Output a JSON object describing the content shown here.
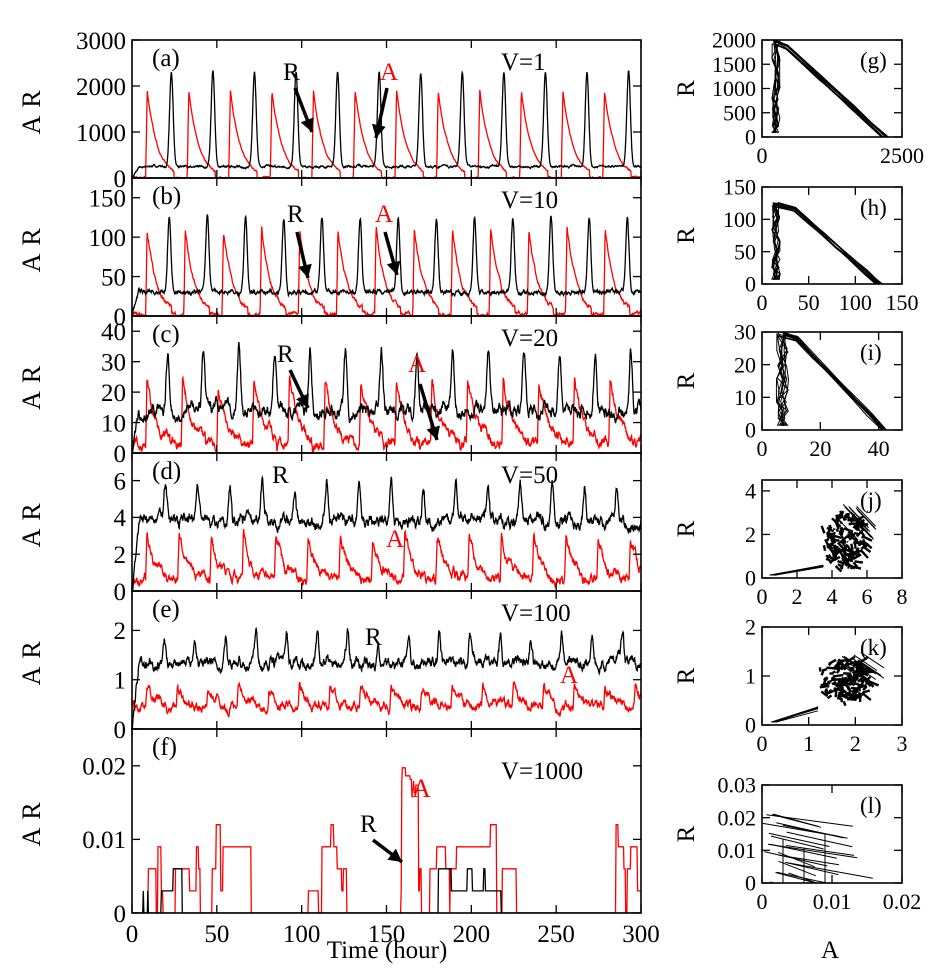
{
  "colors": {
    "R": "#000000",
    "A": "#ff0000"
  },
  "shared_xlabel": "Time (hour)",
  "shared_phase_xlabel": "A",
  "chart_data": [
    {
      "id": "a",
      "type": "line",
      "label": "(a)",
      "annotation": "V=1",
      "ylabel_left": "A",
      "ylabel_right": "R",
      "xlim": [
        0,
        300
      ],
      "ylim": [
        0,
        3000
      ],
      "yticks": [
        0,
        1000,
        2000,
        3000
      ],
      "xticks": [
        0,
        50,
        100,
        150,
        200,
        250,
        300
      ],
      "period": 24.5,
      "R_peak": 2300,
      "R_base": 250,
      "A_peak": 1900,
      "A_base": 0,
      "noise": 25,
      "arrow_R_text": "R",
      "arrow_A_text": "A",
      "series": [
        {
          "name": "R",
          "color": "#000000"
        },
        {
          "name": "A",
          "color": "#ff0000"
        }
      ]
    },
    {
      "id": "b",
      "type": "line",
      "label": "(b)",
      "annotation": "V=10",
      "ylabel_left": "A",
      "ylabel_right": "R",
      "xlim": [
        0,
        300
      ],
      "ylim": [
        0,
        175
      ],
      "yticks": [
        0,
        50,
        100,
        150
      ],
      "xticks": [
        0,
        50,
        100,
        150,
        200,
        250,
        300
      ],
      "period": 22.5,
      "R_peak": 125,
      "R_base": 30,
      "A_peak": 110,
      "A_base": 2,
      "noise": 3,
      "arrow_R_text": "R",
      "arrow_A_text": "A",
      "series": [
        {
          "name": "R",
          "color": "#000000"
        },
        {
          "name": "A",
          "color": "#ff0000"
        }
      ]
    },
    {
      "id": "c",
      "type": "line",
      "label": "(c)",
      "annotation": "V=20",
      "ylabel_left": "A",
      "ylabel_right": "R",
      "xlim": [
        0,
        300
      ],
      "ylim": [
        0,
        45
      ],
      "yticks": [
        0,
        10,
        20,
        30,
        40
      ],
      "xticks": [
        0,
        50,
        100,
        150,
        200,
        250,
        300
      ],
      "period": 21,
      "R_peak": 33,
      "R_base": 14,
      "A_peak": 24,
      "A_base": 3,
      "noise": 2.2,
      "arrow_R_text": "R",
      "arrow_A_text": "A",
      "series": [
        {
          "name": "R",
          "color": "#000000"
        },
        {
          "name": "A",
          "color": "#ff0000"
        }
      ]
    },
    {
      "id": "d",
      "type": "line",
      "label": "(d)",
      "annotation": "V=50",
      "ylabel_left": "A",
      "ylabel_right": "R",
      "xlim": [
        0,
        300
      ],
      "ylim": [
        0,
        7.5
      ],
      "yticks": [
        0,
        2,
        4,
        6
      ],
      "xticks": [
        0,
        50,
        100,
        150,
        200,
        250,
        300
      ],
      "period": 19,
      "R_peak": 5.8,
      "R_base": 3.8,
      "A_peak": 3.0,
      "A_base": 0.6,
      "noise": 0.35,
      "text_R": "R",
      "text_A": "A",
      "series": [
        {
          "name": "R",
          "color": "#000000"
        },
        {
          "name": "A",
          "color": "#ff0000"
        }
      ]
    },
    {
      "id": "e",
      "type": "line",
      "label": "(e)",
      "annotation": "V=100",
      "ylabel_left": "A",
      "ylabel_right": "R",
      "xlim": [
        0,
        300
      ],
      "ylim": [
        0,
        2.8
      ],
      "yticks": [
        0,
        1,
        2
      ],
      "xticks": [
        0,
        50,
        100,
        150,
        200,
        250,
        300
      ],
      "period": 18,
      "R_peak": 1.9,
      "R_base": 1.35,
      "A_peak": 0.9,
      "A_base": 0.45,
      "noise": 0.12,
      "text_R": "R",
      "text_A": "A",
      "series": [
        {
          "name": "R",
          "color": "#000000"
        },
        {
          "name": "A",
          "color": "#ff0000"
        }
      ]
    },
    {
      "id": "f",
      "type": "line",
      "label": "(f)",
      "annotation": "V=1000",
      "ylabel_left": "A",
      "ylabel_right": "R",
      "xlim": [
        0,
        300
      ],
      "ylim": [
        0,
        0.025
      ],
      "yticks": [
        0,
        0.01,
        0.02
      ],
      "ytick_labels": [
        "0",
        "0.01",
        "0.02"
      ],
      "xticks": [
        0,
        50,
        100,
        150,
        200,
        250,
        300
      ],
      "arrow_R_text": "R",
      "text_A": "A",
      "series": [
        {
          "name": "R",
          "color": "#000000"
        },
        {
          "name": "A",
          "color": "#ff0000"
        }
      ]
    },
    {
      "id": "g",
      "type": "scatter",
      "label": "(g)",
      "ylabel": "R",
      "xlim": [
        0,
        2500
      ],
      "ylim": [
        0,
        2000
      ],
      "xticks": [
        0,
        2500
      ],
      "xtick_labels": [
        "0",
        "2500"
      ],
      "yticks": [
        0,
        500,
        1000,
        1500,
        2000
      ],
      "loop": {
        "x_min": 250,
        "x_max": 2200,
        "x_peak": 450,
        "y_max": 1850
      }
    },
    {
      "id": "h",
      "type": "scatter",
      "label": "(h)",
      "ylabel": "R",
      "xlim": [
        0,
        150
      ],
      "ylim": [
        0,
        150
      ],
      "xticks": [
        0,
        50,
        100,
        150
      ],
      "xtick_labels": [
        "0",
        "50",
        "100",
        "150"
      ],
      "yticks": [
        0,
        50,
        100,
        150
      ],
      "loop": {
        "x_min": 15,
        "x_max": 125,
        "x_peak": 35,
        "y_max": 115
      }
    },
    {
      "id": "i",
      "type": "scatter",
      "label": "(i)",
      "ylabel": "R",
      "xlim": [
        0,
        48
      ],
      "ylim": [
        0,
        30
      ],
      "xticks": [
        0,
        20,
        40
      ],
      "yticks": [
        0,
        10,
        20,
        30
      ],
      "loop": {
        "x_min": 7,
        "x_max": 42,
        "x_peak": 12,
        "y_max": 28
      }
    },
    {
      "id": "j",
      "type": "scatter",
      "label": "(j)",
      "ylabel": "R",
      "xlim": [
        0,
        8
      ],
      "ylim": [
        0,
        4.5
      ],
      "xticks": [
        0,
        2,
        4,
        6,
        8
      ],
      "yticks": [
        0,
        2,
        4
      ],
      "cloud": {
        "cx": 4.7,
        "cy": 1.7,
        "rx": 1.2,
        "ry": 1.3
      }
    },
    {
      "id": "k",
      "type": "scatter",
      "label": "(k)",
      "ylabel": "R",
      "xlim": [
        0,
        3
      ],
      "ylim": [
        0,
        2
      ],
      "xticks": [
        0,
        1,
        2,
        3
      ],
      "yticks": [
        0,
        1,
        2
      ],
      "cloud": {
        "cx": 1.75,
        "cy": 0.9,
        "rx": 0.55,
        "ry": 0.45
      }
    },
    {
      "id": "l",
      "type": "scatter",
      "label": "(l)",
      "ylabel": "R",
      "xlim": [
        0,
        0.02
      ],
      "ylim": [
        0,
        0.03
      ],
      "xticks": [
        0,
        0.01,
        0.02
      ],
      "xtick_labels": [
        "0",
        "0.01",
        "0.02"
      ],
      "yticks": [
        0,
        0.01,
        0.02,
        0.03
      ],
      "ytick_labels": [
        "0",
        "0.01",
        "0.02",
        "0.03"
      ],
      "grid_cloud": {
        "x_max": 0.013,
        "y_max": 0.021
      }
    }
  ]
}
